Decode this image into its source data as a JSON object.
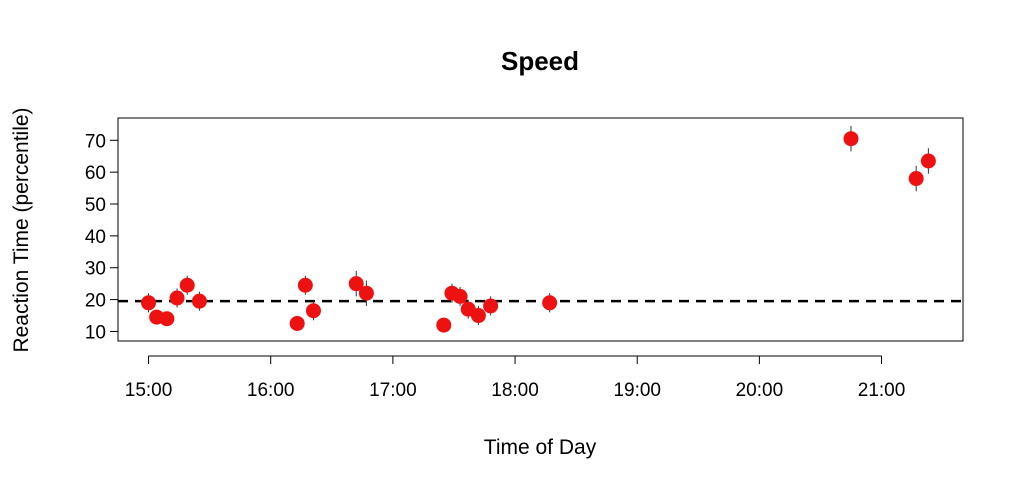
{
  "chart_data": {
    "type": "scatter",
    "title": "Speed",
    "xlabel": "Time of Day",
    "ylabel": "Reaction Time (percentile)",
    "x_ticks": [
      "15:00",
      "16:00",
      "17:00",
      "18:00",
      "19:00",
      "20:00",
      "21:00"
    ],
    "y_ticks": [
      10,
      20,
      30,
      40,
      50,
      60,
      70
    ],
    "xlim": [
      "14:45",
      "21:40"
    ],
    "ylim": [
      7,
      77
    ],
    "reference_line": {
      "y": 19.5,
      "style": "dashed"
    },
    "point_color": "#ee1111",
    "errorbar_color": "#333333",
    "points": [
      {
        "x": "15:00",
        "y": 19.0,
        "err": 3
      },
      {
        "x": "15:04",
        "y": 14.5,
        "err": 2
      },
      {
        "x": "15:09",
        "y": 14.0,
        "err": 2
      },
      {
        "x": "15:14",
        "y": 20.5,
        "err": 3
      },
      {
        "x": "15:19",
        "y": 24.5,
        "err": 3
      },
      {
        "x": "15:25",
        "y": 19.5,
        "err": 3
      },
      {
        "x": "16:13",
        "y": 12.5,
        "err": 2
      },
      {
        "x": "16:17",
        "y": 24.5,
        "err": 3
      },
      {
        "x": "16:21",
        "y": 16.5,
        "err": 3
      },
      {
        "x": "16:42",
        "y": 25.0,
        "err": 4
      },
      {
        "x": "16:47",
        "y": 22.0,
        "err": 4
      },
      {
        "x": "17:25",
        "y": 12.0,
        "err": 2
      },
      {
        "x": "17:29",
        "y": 22.0,
        "err": 3
      },
      {
        "x": "17:33",
        "y": 21.0,
        "err": 3
      },
      {
        "x": "17:37",
        "y": 17.0,
        "err": 3
      },
      {
        "x": "17:42",
        "y": 15.0,
        "err": 3
      },
      {
        "x": "17:48",
        "y": 18.0,
        "err": 3
      },
      {
        "x": "18:17",
        "y": 19.0,
        "err": 3
      },
      {
        "x": "20:45",
        "y": 70.5,
        "err": 4
      },
      {
        "x": "21:17",
        "y": 58.0,
        "err": 4
      },
      {
        "x": "21:23",
        "y": 63.5,
        "err": 4
      }
    ]
  }
}
